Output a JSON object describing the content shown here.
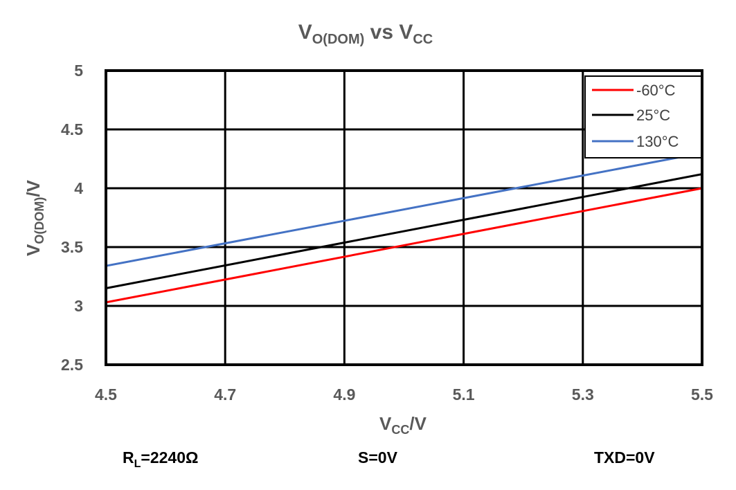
{
  "chart_data": {
    "type": "line",
    "title": {
      "main": "V",
      "sub": "O(DOM)",
      "mid": " vs V",
      "sub2": "CC"
    },
    "xlabel": {
      "main": "V",
      "sub": "CC",
      "tail": "/V"
    },
    "ylabel": {
      "main": "V",
      "sub": "O(DOM)",
      "tail": "/V"
    },
    "xlim": [
      4.5,
      5.5
    ],
    "ylim": [
      2.5,
      5
    ],
    "x_ticks": [
      "4.5",
      "4.7",
      "4.9",
      "5.1",
      "5.3",
      "5.5"
    ],
    "y_ticks": [
      "2.5",
      "3",
      "3.5",
      "4",
      "4.5",
      "5"
    ],
    "grid": true,
    "legend_position": "top-right",
    "series": [
      {
        "name": "-60°C",
        "color": "#ff0000",
        "x": [
          4.5,
          5.5
        ],
        "y": [
          3.03,
          4.0
        ]
      },
      {
        "name": "25°C",
        "color": "#000000",
        "x": [
          4.5,
          5.5
        ],
        "y": [
          3.15,
          4.12
        ]
      },
      {
        "name": "130°C",
        "color": "#4472c4",
        "x": [
          4.5,
          5.5
        ],
        "y": [
          3.34,
          4.3
        ]
      }
    ],
    "conditions": [
      {
        "main": "R",
        "sub": "L",
        "tail": "=2240Ω"
      },
      {
        "main": "S=0V",
        "sub": "",
        "tail": ""
      },
      {
        "main": "TXD=0V",
        "sub": "",
        "tail": ""
      }
    ]
  }
}
